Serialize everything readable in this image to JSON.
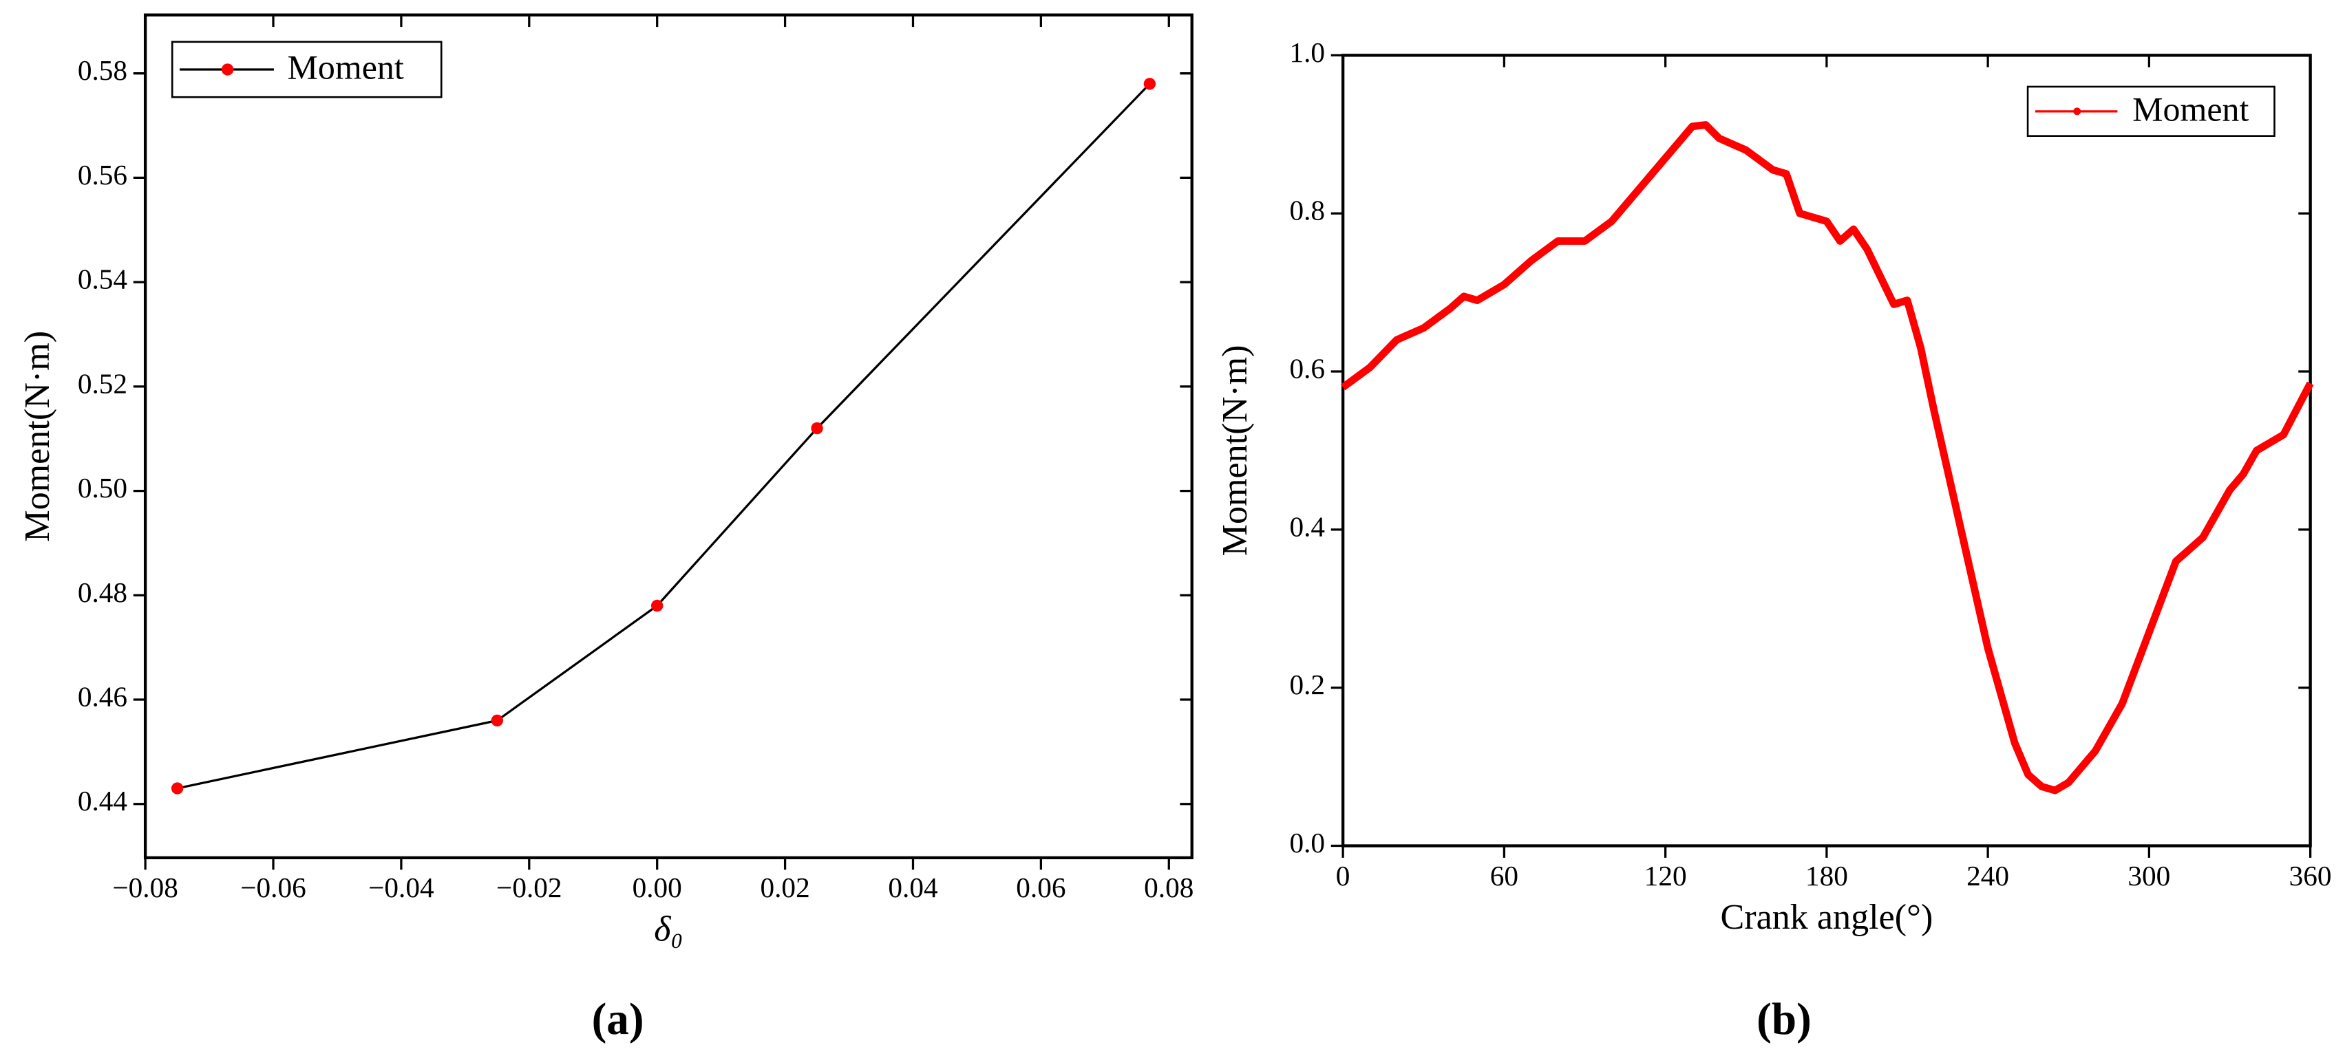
{
  "chart_data": [
    {
      "type": "line",
      "caption": "(a)",
      "x_label": "δ₀",
      "y_label": "Moment(N·m)",
      "legend": "upper left",
      "markers": true,
      "x": [
        -0.075,
        -0.025,
        0.0,
        0.025,
        0.077
      ],
      "series": [
        {
          "name": "Moment",
          "color": "#ff0000",
          "line_color": "#000000",
          "values": [
            0.443,
            0.456,
            0.478,
            0.512,
            0.578
          ]
        }
      ],
      "xlim": [
        -0.08,
        0.0836
      ],
      "ylim": [
        0.4297,
        0.5912
      ],
      "xticks": [
        {
          "value": -0.08,
          "label": "−0.08"
        },
        {
          "value": -0.06,
          "label": "−0.06"
        },
        {
          "value": -0.04,
          "label": "−0.04"
        },
        {
          "value": -0.02,
          "label": "−0.02"
        },
        {
          "value": 0,
          "label": "0.00"
        },
        0.02,
        0.04,
        0.06,
        0.08
      ],
      "yticks": [
        0.44,
        0.46,
        0.48,
        {
          "value": 0.5,
          "label": "0.50"
        },
        0.52,
        0.54,
        0.56,
        0.58
      ]
    },
    {
      "type": "line",
      "caption": "(b)",
      "x_label": "Crank angle(°)",
      "y_label": "Moment(N·m)",
      "legend": "upper right",
      "markers": false,
      "x": [
        0,
        10,
        20,
        30,
        40,
        45,
        50,
        60,
        70,
        80,
        90,
        100,
        110,
        120,
        130,
        135,
        140,
        150,
        160,
        165,
        170,
        180,
        185,
        190,
        195,
        200,
        205,
        210,
        215,
        220,
        230,
        240,
        250,
        255,
        260,
        265,
        270,
        280,
        290,
        300,
        310,
        320,
        330,
        335,
        340,
        350,
        360
      ],
      "series": [
        {
          "name": "Moment",
          "color": "#ff0000",
          "line_color": "#ff0000",
          "values": [
            0.58,
            0.605,
            0.64,
            0.655,
            0.68,
            0.695,
            0.69,
            0.71,
            0.74,
            0.765,
            0.765,
            0.79,
            0.83,
            0.87,
            0.91,
            0.912,
            0.895,
            0.88,
            0.855,
            0.85,
            0.8,
            0.79,
            0.765,
            0.78,
            0.755,
            0.72,
            0.685,
            0.69,
            0.63,
            0.55,
            0.4,
            0.25,
            0.13,
            0.09,
            0.075,
            0.07,
            0.08,
            0.12,
            0.18,
            0.27,
            0.36,
            0.39,
            0.45,
            0.47,
            0.5,
            0.52,
            0.585
          ]
        }
      ],
      "xlim": [
        0,
        360
      ],
      "ylim": [
        0,
        1.0
      ],
      "xticks": [
        0,
        60,
        120,
        180,
        240,
        300,
        360
      ],
      "yticks": [
        {
          "value": 0,
          "label": "0.0"
        },
        0.2,
        0.4,
        0.6,
        0.8,
        {
          "value": 1,
          "label": "1.0"
        }
      ]
    }
  ]
}
